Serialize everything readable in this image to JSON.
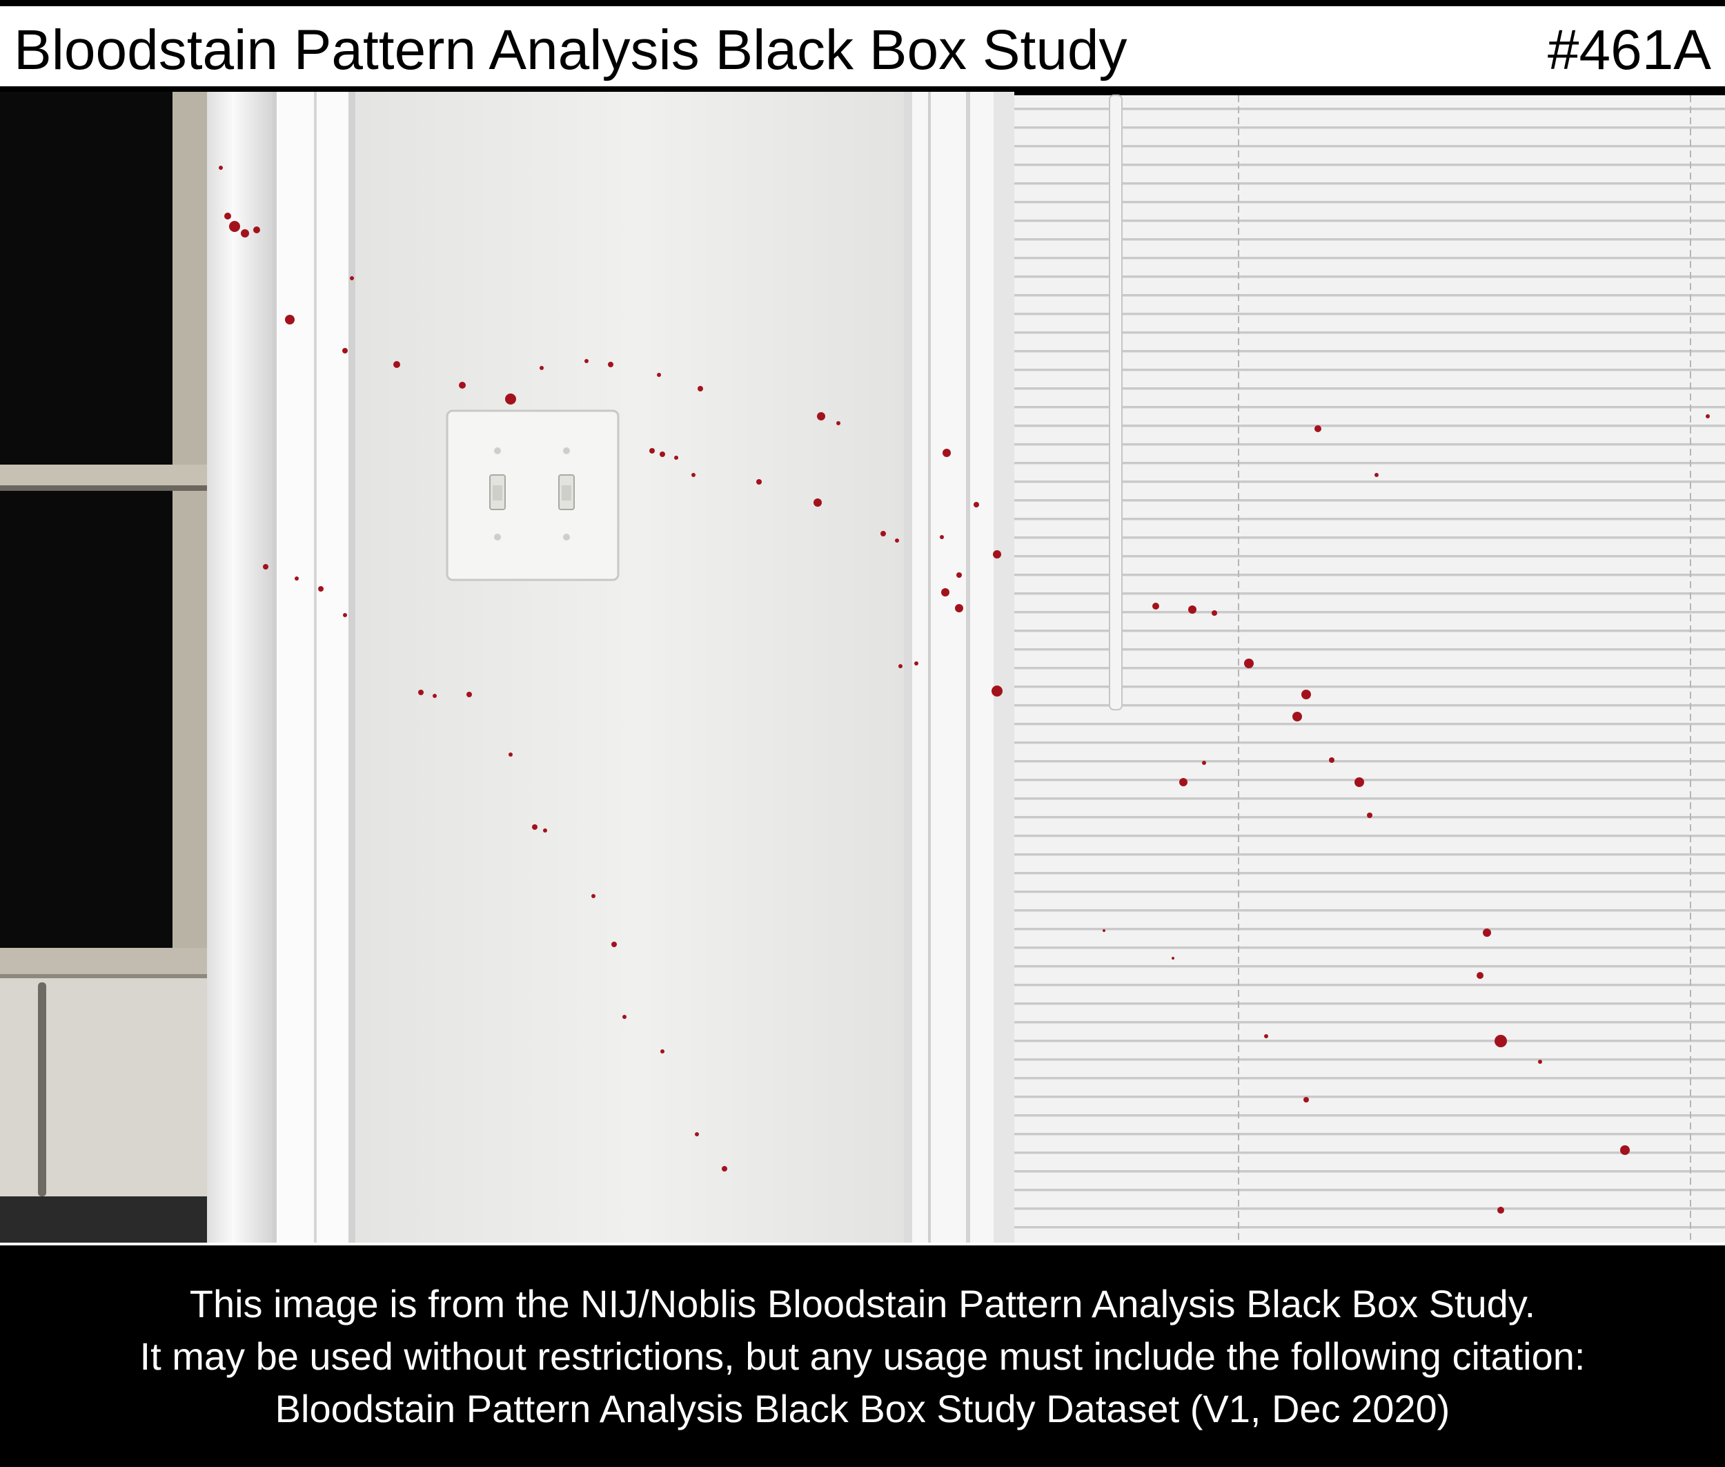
{
  "header": {
    "title": "Bloodstain Pattern Analysis Black Box Study",
    "image_id": "#461A"
  },
  "photo": {
    "subject": "scene-photo",
    "colors": {
      "wall": "#eeeeec",
      "trim": "#f6f6f4",
      "blinds": "#f1f1f1",
      "night_window": "#0b0b0b",
      "bloodstain": "#a3121c"
    }
  },
  "footer": {
    "lines": [
      "This image is from the NIJ/Noblis Bloodstain Pattern Analysis Black Box Study.",
      "It may be used without restrictions, but any usage must include the following citation:",
      "Bloodstain Pattern Analysis Black Box Study Dataset (V1, Dec 2020)"
    ]
  }
}
